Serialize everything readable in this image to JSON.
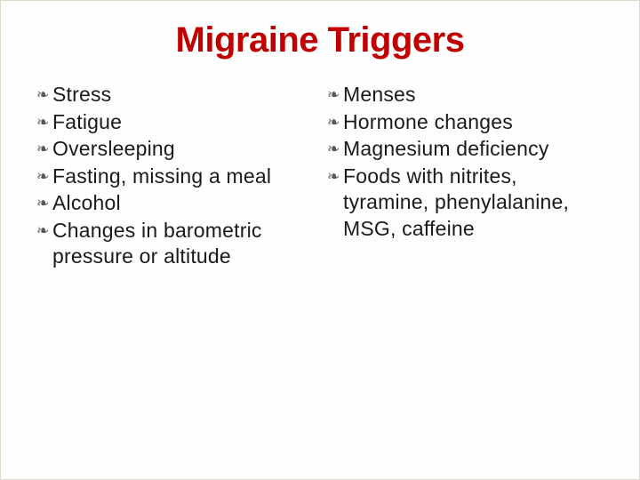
{
  "title": "Migraine Triggers",
  "title_color": "#c00000",
  "title_fontsize": 40,
  "body_fontsize": 23,
  "text_color": "#1a1a1a",
  "bullet_glyph": "❧",
  "bullet_color": "#5a5550",
  "background_color": "#fefefe",
  "border_color": "#e0d8c8",
  "columns": {
    "left": [
      "Stress",
      "Fatigue",
      "Oversleeping",
      "Fasting, missing a meal",
      "Alcohol",
      "Changes in barometric pressure or altitude"
    ],
    "right": [
      "Menses",
      "Hormone changes",
      "Magnesium deficiency",
      "Foods with nitrites, tyramine, phenylalanine, MSG, caffeine"
    ]
  }
}
